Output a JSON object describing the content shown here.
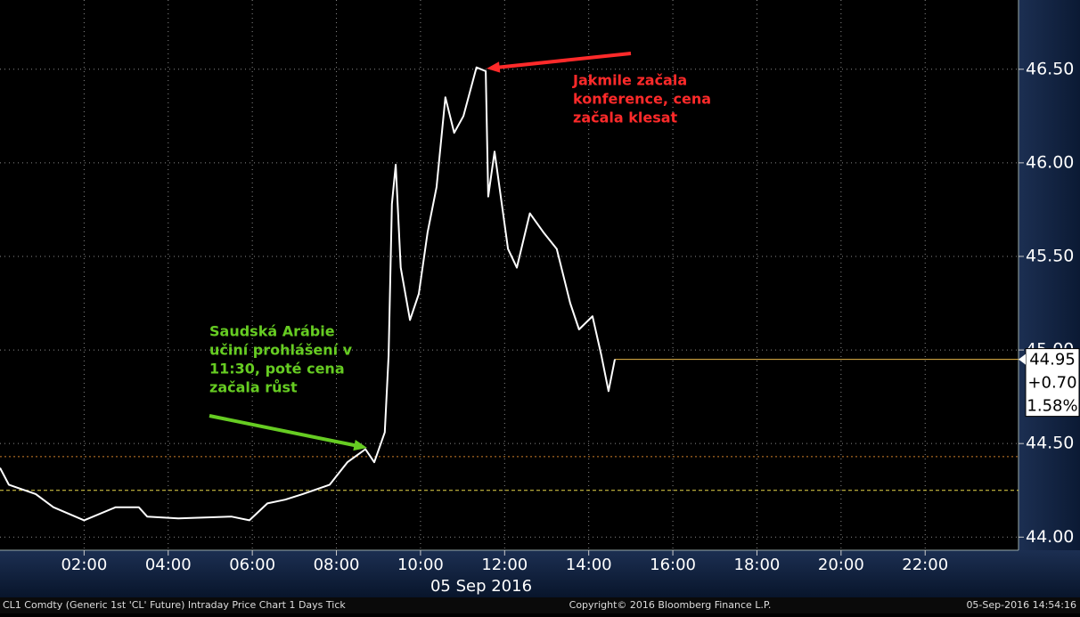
{
  "chart_data": {
    "type": "line",
    "date_label": "05 Sep 2016",
    "series": [
      {
        "color": "#ffffff",
        "x": [
          0,
          0.21,
          0.85,
          1.27,
          2.0,
          2.75,
          3.3,
          3.5,
          4.24,
          5.5,
          5.93,
          6.36,
          6.78,
          7.2,
          7.84,
          8.26,
          8.69,
          8.9,
          9.15,
          9.24,
          9.32,
          9.41,
          9.53,
          9.75,
          9.96,
          10.17,
          10.38,
          10.59,
          10.8,
          11.02,
          11.33,
          11.55,
          11.61,
          11.76,
          12.08,
          12.29,
          12.6,
          12.92,
          13.24,
          13.56,
          13.77,
          14.09,
          14.3,
          14.47,
          14.62
        ],
        "values": [
          44.37,
          44.28,
          44.23,
          44.16,
          44.09,
          44.16,
          44.16,
          44.11,
          44.1,
          44.11,
          44.09,
          44.18,
          44.2,
          44.23,
          44.28,
          44.4,
          44.47,
          44.4,
          44.56,
          44.97,
          45.78,
          45.99,
          45.44,
          45.16,
          45.3,
          45.63,
          45.87,
          46.35,
          46.16,
          46.25,
          46.51,
          46.49,
          45.82,
          46.06,
          45.54,
          45.44,
          45.73,
          45.63,
          45.54,
          45.25,
          45.11,
          45.18,
          44.97,
          44.78,
          44.95
        ]
      }
    ],
    "xlim": [
      0,
      24.22
    ],
    "xticks": [
      {
        "value": 2,
        "label": "02:00"
      },
      {
        "value": 4,
        "label": "04:00"
      },
      {
        "value": 6,
        "label": "06:00"
      },
      {
        "value": 8,
        "label": "08:00"
      },
      {
        "value": 10,
        "label": "10:00"
      },
      {
        "value": 12,
        "label": "12:00"
      },
      {
        "value": 14,
        "label": "14:00"
      },
      {
        "value": 16,
        "label": "16:00"
      },
      {
        "value": 18,
        "label": "18:00"
      },
      {
        "value": 20,
        "label": "20:00"
      },
      {
        "value": 22,
        "label": "22:00"
      }
    ],
    "ylim": [
      43.93,
      46.87
    ],
    "yticks": [
      {
        "value": 44,
        "label": "44.00"
      },
      {
        "value": 44.5,
        "label": "44.50"
      },
      {
        "value": 45,
        "label": "45.00"
      },
      {
        "value": 45.5,
        "label": "45.50"
      },
      {
        "value": 46,
        "label": "46.00"
      },
      {
        "value": 46.5,
        "label": "46.50"
      }
    ],
    "grid": true,
    "reference_lines": [
      {
        "value": 44.95,
        "color": "#e8b84a",
        "style": "solid"
      },
      {
        "value": 44.43,
        "color": "#d0802a",
        "style": "dotted"
      },
      {
        "value": 44.25,
        "color": "#e8d84a",
        "style": "dashed"
      }
    ],
    "price_box": [
      "44.95",
      "+0.70",
      "1.58%"
    ],
    "annotations": [
      {
        "color": "#ff2a2a",
        "lines": [
          "Jakmile začala",
          "konference, cena",
          "začala klesat"
        ]
      },
      {
        "color": "#66cc22",
        "lines": [
          "Saudská Arábie",
          "učiní prohlášení v",
          "11:30, poté cena",
          "začala růst"
        ]
      }
    ],
    "footer": [
      "CL1 Comdty (Generic 1st 'CL' Future) Intraday Price Chart 1 Days  Tick",
      "Copyright© 2016 Bloomberg Finance L.P.",
      "05-Sep-2016 14:54:16"
    ]
  }
}
